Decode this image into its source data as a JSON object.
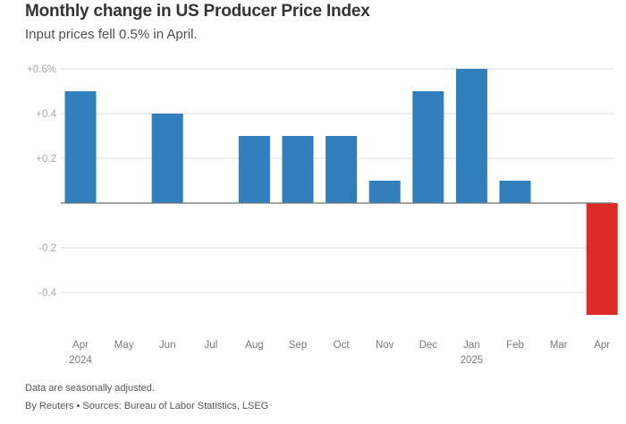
{
  "chart_data": {
    "type": "bar",
    "title": "Monthly change in US Producer Price Index",
    "subtitle": "Input prices fell 0.5% in April.",
    "categories": [
      "Apr",
      "May",
      "Jun",
      "Jul",
      "Aug",
      "Sep",
      "Oct",
      "Nov",
      "Dec",
      "Jan",
      "Feb",
      "Mar",
      "Apr"
    ],
    "category_sublabels": [
      "2024",
      "",
      "",
      "",
      "",
      "",
      "",
      "",
      "",
      "2025",
      "",
      "",
      ""
    ],
    "values": [
      0.5,
      0,
      0.4,
      0,
      0.3,
      0.3,
      0.3,
      0.1,
      0.5,
      0.6,
      0.1,
      0,
      -0.5
    ],
    "xlabel": "",
    "ylabel": "",
    "ylim": [
      -0.5,
      0.6
    ],
    "yticks": [
      0.6,
      0.4,
      0.2,
      0,
      -0.2,
      -0.4
    ],
    "ytick_labels": [
      "+0.6%",
      "+0.4",
      "+0.2",
      "",
      "-0.2",
      "-0.4"
    ],
    "grid": true,
    "colors": {
      "positive": "#3180bd",
      "negative": "#dd2c27",
      "grid": "#dcdcdc",
      "zero_line": "#707070"
    }
  },
  "footer": {
    "note": "Data are seasonally adjusted.",
    "source": "By Reuters • Sources: Bureau of Labor Statistics, LSEG"
  }
}
